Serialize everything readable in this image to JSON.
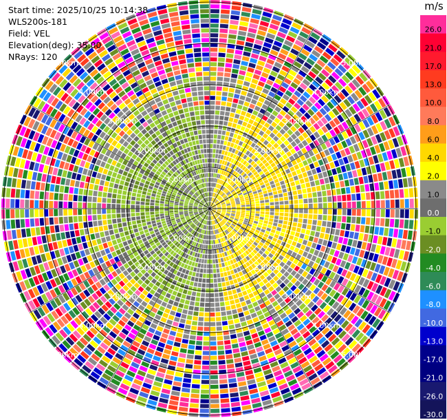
{
  "info": {
    "start_time": "Start time: 2025/10/25 10:14:38",
    "instrument": "WLS200s-181",
    "field": "Field: VEL",
    "elevation": "Elevation(deg): 35.00",
    "nrays": "NRays: 120"
  },
  "colorbar": {
    "unit": "m/s",
    "levels": [
      {
        "label": "26.0",
        "color": "#ff2d9b"
      },
      {
        "label": "21.0",
        "color": "#ff0033"
      },
      {
        "label": "17.0",
        "color": "#ff1a2e"
      },
      {
        "label": "13.0",
        "color": "#ff3b1f"
      },
      {
        "label": "10.0",
        "color": "#ff5a3c"
      },
      {
        "label": "8.0",
        "color": "#ff7a5a"
      },
      {
        "label": "6.0",
        "color": "#ff9d1a"
      },
      {
        "label": "4.0",
        "color": "#ffd800"
      },
      {
        "label": "2.0",
        "color": "#ffff00"
      },
      {
        "label": "1.0",
        "color": "#8a8a8a"
      },
      {
        "label": "0.0",
        "color": "#6e6e6e"
      },
      {
        "label": "-1.0",
        "color": "#9acd32"
      },
      {
        "label": "-2.0",
        "color": "#6b8e23"
      },
      {
        "label": "-4.0",
        "color": "#228b22"
      },
      {
        "label": "-6.0",
        "color": "#2e8b57"
      },
      {
        "label": "-8.0",
        "color": "#1e90ff"
      },
      {
        "label": "-10.0",
        "color": "#4169e1"
      },
      {
        "label": "-13.0",
        "color": "#0000cd"
      },
      {
        "label": "-17.0",
        "color": "#00008b"
      },
      {
        "label": "-21.0",
        "color": "#000080"
      },
      {
        "label": "-26.0",
        "color": "#191970"
      },
      {
        "label": "-30.0",
        "color": "#14145a"
      }
    ]
  },
  "range_rings": [
    "1.00km",
    "2.00km",
    "3.00km",
    "4.00km",
    "5.00km"
  ],
  "plot": {
    "type": "ppi",
    "rays": 120,
    "inner_colors": [
      "#ffd800",
      "#ffff00",
      "#8a8a8a",
      "#6e6e6e",
      "#9acd32",
      "#6b8e23"
    ],
    "outer_colors": [
      "#ff2d9b",
      "#ff0033",
      "#ff3b1f",
      "#ff5a3c",
      "#ff7a5a",
      "#ff9d1a",
      "#ffd800",
      "#ffff00",
      "#8a8a8a",
      "#9acd32",
      "#6b8e23",
      "#228b22",
      "#2e8b57",
      "#1e90ff",
      "#4169e1",
      "#0000cd",
      "#00008b",
      "#191970",
      "#ff00ff",
      "#ff69b4"
    ]
  }
}
